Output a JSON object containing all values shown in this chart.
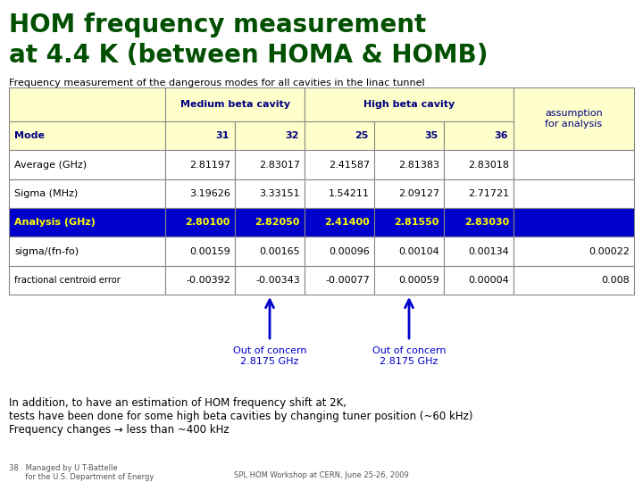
{
  "title_line1": "HOM frequency measurement",
  "title_line2": "at 4.4 K (between HOMA & HOMB)",
  "title_color": "#005000",
  "subtitle": "Frequency measurement of the dangerous modes for all cavities in the linac tunnel",
  "table": {
    "header_bg": "#FFFFCC",
    "header_text_color": "#000080",
    "analysis_row_bg": "#0000CC",
    "analysis_row_text_color": "#FFFF00",
    "normal_row_bg": "#FFFFFF",
    "normal_row_text_color": "#000000",
    "grid_color": "#888888"
  },
  "arrow_color": "#0000CC",
  "bottom_text_line1": "In addition, to have an estimation of HOM frequency shift at 2K,",
  "bottom_text_line2": "tests have been done for some high beta cavities by changing tuner position (~60 kHz)",
  "bottom_text_line3": "Frequency changes → less than ~400 kHz",
  "footer_left1": "38   Managed by U T-Battelle",
  "footer_left2": "       for the U.S. Department of Energy",
  "footer_center": "SPL HOM Workshop at CERN, June 25-26, 2009",
  "bg_color": "#FFFFFF"
}
